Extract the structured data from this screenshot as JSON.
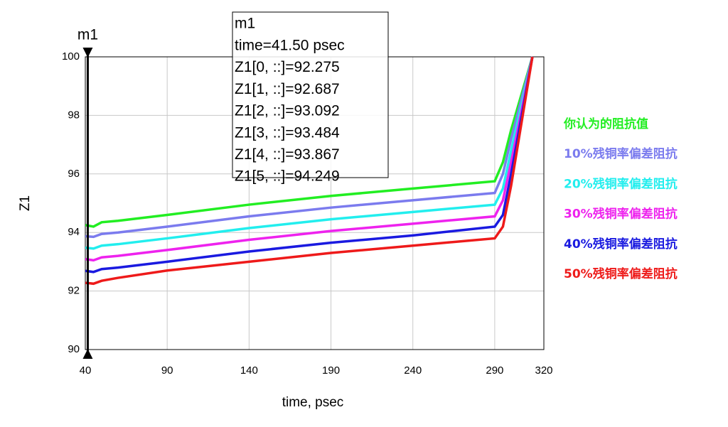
{
  "chart_data": {
    "type": "line",
    "x_label": "time, psec",
    "y_label": "Z1",
    "x": [
      40,
      45,
      50,
      60,
      90,
      140,
      190,
      240,
      290,
      295,
      300,
      313
    ],
    "series": [
      {
        "name": "你认为的阻抗值",
        "color": "#22ee22",
        "values": [
          94.25,
          94.2,
          94.35,
          94.4,
          94.6,
          94.95,
          95.25,
          95.5,
          95.75,
          96.4,
          97.5,
          100
        ]
      },
      {
        "name": "10%残铜率偏差阻抗",
        "color": "#7b7bee",
        "values": [
          93.87,
          93.85,
          93.95,
          94.0,
          94.2,
          94.55,
          94.85,
          95.1,
          95.35,
          96.0,
          97.2,
          100
        ]
      },
      {
        "name": "20%残铜率偏差阻抗",
        "color": "#22eeee",
        "values": [
          93.48,
          93.45,
          93.55,
          93.6,
          93.8,
          94.15,
          94.45,
          94.7,
          94.95,
          95.5,
          96.8,
          100
        ]
      },
      {
        "name": "30%残铜率偏差阻抗",
        "color": "#ee22ee",
        "values": [
          93.09,
          93.05,
          93.15,
          93.2,
          93.4,
          93.75,
          94.05,
          94.3,
          94.55,
          95.1,
          96.4,
          100
        ]
      },
      {
        "name": "40%残铜率偏差阻抗",
        "color": "#1a1ae0",
        "values": [
          92.69,
          92.65,
          92.75,
          92.8,
          93.0,
          93.35,
          93.65,
          93.9,
          94.2,
          94.6,
          96.0,
          100
        ]
      },
      {
        "name": "50%残铜率偏差阻抗",
        "color": "#ee1a1a",
        "values": [
          92.28,
          92.25,
          92.35,
          92.45,
          92.7,
          93.0,
          93.3,
          93.55,
          93.8,
          94.2,
          95.6,
          100
        ]
      }
    ],
    "xlim": [
      40,
      320
    ],
    "xticks": [
      40,
      90,
      140,
      190,
      240,
      290,
      320
    ],
    "ylim": [
      90,
      100
    ],
    "yticks": [
      90,
      92,
      94,
      96,
      98,
      100
    ],
    "grid": true,
    "marker": {
      "name": "m1",
      "x": 41.5,
      "lines": [
        "time=41.50 psec",
        "Z1[0, ::]=92.275",
        "Z1[1, ::]=92.687",
        "Z1[2, ::]=93.092",
        "Z1[3, ::]=93.484",
        "Z1[4, ::]=93.867",
        "Z1[5, ::]=94.249"
      ]
    }
  }
}
